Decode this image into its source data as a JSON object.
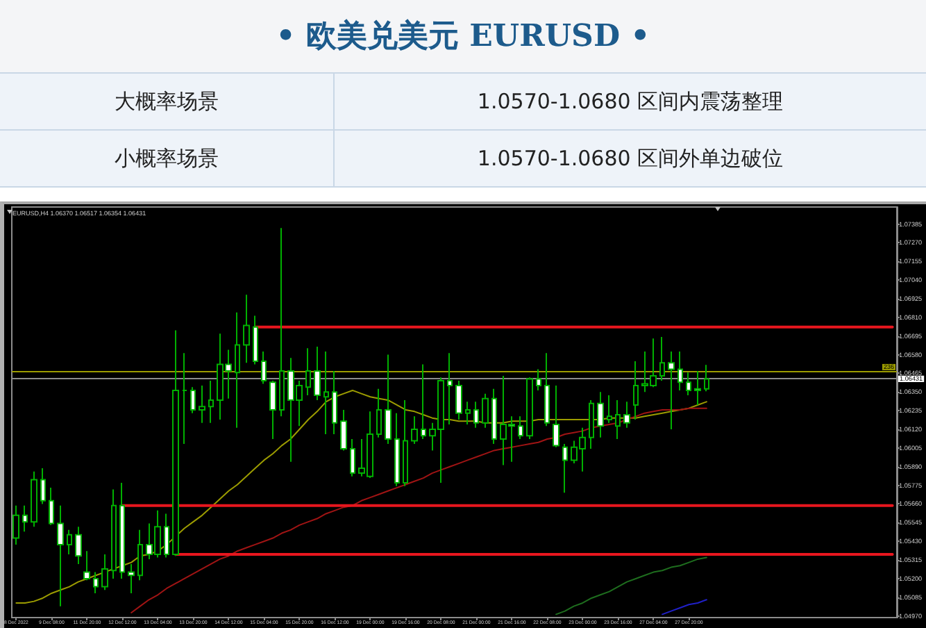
{
  "chart_data": {
    "type": "candlestick",
    "title": "• 欧美兑美元 EURUSD •",
    "subtitle": "EURUSD,H4 1.06370 1.06517 1.06354 1.06431",
    "annotations": [
      "大概率场景",
      "1.0570-1.0680 区间内震荡整理",
      "小概率场景",
      "1.0570-1.0680 区间外单边破位",
      {
        "text": "236",
        "y": 1.0648
      }
    ],
    "categories": [
      "8 Dec 2022",
      null,
      null,
      null,
      "9 Dec 08:00",
      null,
      null,
      null,
      "11 Dec 20:00",
      null,
      null,
      null,
      "12 Dec 12:00",
      null,
      null,
      null,
      "13 Dec 04:00",
      null,
      null,
      null,
      "13 Dec 20:00",
      null,
      null,
      null,
      "14 Dec 12:00",
      null,
      null,
      null,
      "15 Dec 04:00",
      null,
      null,
      null,
      "15 Dec 20:00",
      null,
      null,
      null,
      "16 Dec 12:00",
      null,
      null,
      null,
      "19 Dec 00:00",
      null,
      null,
      null,
      "19 Dec 16:00",
      null,
      null,
      null,
      "20 Dec 08:00",
      null,
      null,
      null,
      "21 Dec 00:00",
      null,
      null,
      null,
      "21 Dec 16:00",
      null,
      null,
      null,
      "22 Dec 08:00",
      null,
      null,
      null,
      "23 Dec 00:00",
      null,
      null,
      null,
      "23 Dec 16:00",
      null,
      null,
      null,
      "27 Dec 04:00",
      null,
      null,
      null,
      "27 Dec 20:00",
      null,
      null,
      null,
      null,
      null,
      null,
      null,
      null,
      null,
      null,
      null,
      null,
      null,
      null,
      null,
      null,
      null,
      null,
      null,
      null,
      null,
      null,
      null
    ],
    "ohlc": [
      [
        1.0545,
        1.0565,
        1.0541,
        1.0559
      ],
      [
        1.0559,
        1.0565,
        1.0549,
        1.0555
      ],
      [
        1.0555,
        1.0586,
        1.0552,
        1.0581
      ],
      [
        1.0581,
        1.0588,
        1.0566,
        1.0568
      ],
      [
        1.0568,
        1.0576,
        1.0553,
        1.0554
      ],
      [
        1.0554,
        1.0565,
        1.0503,
        1.0541
      ],
      [
        1.0541,
        1.055,
        1.0535,
        1.0547
      ],
      [
        1.0547,
        1.0552,
        1.0529,
        1.0534
      ],
      [
        1.0524,
        1.0537,
        1.0519,
        1.052
      ],
      [
        1.052,
        1.0524,
        1.0511,
        1.0515
      ],
      [
        1.0515,
        1.0535,
        1.0513,
        1.0526
      ],
      [
        1.0525,
        1.0575,
        1.052,
        1.0565
      ],
      [
        1.0565,
        1.0579,
        1.052,
        1.0524
      ],
      [
        1.0524,
        1.0529,
        1.0511,
        1.0522
      ],
      [
        1.0522,
        1.055,
        1.0519,
        1.0541
      ],
      [
        1.0541,
        1.0554,
        1.0532,
        1.0535
      ],
      [
        1.0535,
        1.0562,
        1.0533,
        1.0552
      ],
      [
        1.0552,
        1.056,
        1.0533,
        1.0535
      ],
      [
        1.0535,
        1.0673,
        1.0534,
        1.0636
      ],
      [
        1.0636,
        1.0659,
        1.0603,
        1.0636
      ],
      [
        1.0636,
        1.0638,
        1.0622,
        1.0624
      ],
      [
        1.0624,
        1.0639,
        1.0616,
        1.0626
      ],
      [
        1.0626,
        1.0642,
        1.0616,
        1.063
      ],
      [
        1.063,
        1.0671,
        1.0618,
        1.0652
      ],
      [
        1.0652,
        1.0661,
        1.0631,
        1.0648
      ],
      [
        1.0647,
        1.0684,
        1.0613,
        1.0664
      ],
      [
        1.0664,
        1.0695,
        1.0653,
        1.0676
      ],
      [
        1.0675,
        1.0682,
        1.0652,
        1.0654
      ],
      [
        1.0654,
        1.066,
        1.064,
        1.0642
      ],
      [
        1.0641,
        1.0642,
        1.0606,
        1.0624
      ],
      [
        1.0624,
        1.0736,
        1.062,
        1.0648
      ],
      [
        1.0648,
        1.0656,
        1.0592,
        1.063
      ],
      [
        1.063,
        1.0642,
        1.0614,
        1.0639
      ],
      [
        1.0638,
        1.0662,
        1.0633,
        1.0648
      ],
      [
        1.0648,
        1.0663,
        1.063,
        1.0633
      ],
      [
        1.0632,
        1.066,
        1.0609,
        1.0635
      ],
      [
        1.0635,
        1.0648,
        1.0609,
        1.0616
      ],
      [
        1.0617,
        1.0624,
        1.0599,
        1.06
      ],
      [
        1.06,
        1.0606,
        1.0583,
        1.0585
      ],
      [
        1.0585,
        1.0606,
        1.0583,
        1.0588
      ],
      [
        1.0583,
        1.0623,
        1.0582,
        1.0609
      ],
      [
        1.0609,
        1.0637,
        1.0607,
        1.0624
      ],
      [
        1.0624,
        1.0658,
        1.0603,
        1.0606
      ],
      [
        1.0606,
        1.0622,
        1.0577,
        1.0579
      ],
      [
        1.0579,
        1.063,
        1.0577,
        1.0605
      ],
      [
        1.0605,
        1.062,
        1.0603,
        1.0612
      ],
      [
        1.0612,
        1.0652,
        1.0606,
        1.0608
      ],
      [
        1.0608,
        1.0616,
        1.0599,
        1.0612
      ],
      [
        1.0612,
        1.0644,
        1.0579,
        1.0642
      ],
      [
        1.0642,
        1.0659,
        1.0615,
        1.0639
      ],
      [
        1.0639,
        1.0642,
        1.0618,
        1.0622
      ],
      [
        1.0622,
        1.0629,
        1.0615,
        1.0624
      ],
      [
        1.0624,
        1.0629,
        1.0613,
        1.0616
      ],
      [
        1.0616,
        1.0634,
        1.0613,
        1.0631
      ],
      [
        1.0631,
        1.0637,
        1.0603,
        1.0606
      ],
      [
        1.0606,
        1.0645,
        1.059,
        1.0615
      ],
      [
        1.0615,
        1.062,
        1.0592,
        1.0614
      ],
      [
        1.0614,
        1.062,
        1.0606,
        1.0608
      ],
      [
        1.0608,
        1.0644,
        1.0606,
        1.0643
      ],
      [
        1.0643,
        1.0649,
        1.0636,
        1.0639
      ],
      [
        1.0639,
        1.0659,
        1.0614,
        1.0616
      ],
      [
        1.0615,
        1.0639,
        1.0601,
        1.0602
      ],
      [
        1.0601,
        1.0603,
        1.0573,
        1.0593
      ],
      [
        1.0593,
        1.0605,
        1.0591,
        1.0601
      ],
      [
        1.06,
        1.0613,
        1.0586,
        1.0607
      ],
      [
        1.0607,
        1.063,
        1.06,
        1.0628
      ],
      [
        1.0628,
        1.0635,
        1.0607,
        1.0614
      ],
      [
        1.0618,
        1.0633,
        1.0616,
        1.062
      ],
      [
        1.0614,
        1.063,
        1.0606,
        1.0621
      ],
      [
        1.0621,
        1.0629,
        1.0613,
        1.0616
      ],
      [
        1.0627,
        1.0654,
        1.0618,
        1.0639
      ],
      [
        1.0639,
        1.066,
        1.0635,
        1.064
      ],
      [
        1.0639,
        1.0668,
        1.0638,
        1.0645
      ],
      [
        1.0645,
        1.0669,
        1.0642,
        1.0653
      ],
      [
        1.0653,
        1.066,
        1.0612,
        1.0649
      ],
      [
        1.0649,
        1.066,
        1.0636,
        1.0641
      ],
      [
        1.0641,
        1.0647,
        1.0633,
        1.0636
      ],
      [
        1.0637,
        1.0648,
        1.0627,
        1.0636
      ],
      [
        1.0637,
        1.06517,
        1.06354,
        1.06431
      ],
      null,
      null,
      null,
      null,
      null,
      null,
      null,
      null,
      null,
      null,
      null,
      null,
      null,
      null,
      null,
      null,
      null,
      null,
      null,
      null,
      null
    ],
    "color": "#00b000",
    "colors": [
      "#000000",
      "#ffffff",
      "#000000",
      "#ffffff",
      "#ffffff",
      "#ffffff",
      "#000000",
      "#ffffff",
      "#ffffff",
      "#ffffff",
      "#000000",
      "#000000",
      "#ffffff",
      "#ffffff",
      "#000000",
      "#ffffff",
      "#000000",
      "#ffffff",
      "#000000",
      "#00b000",
      "#ffffff",
      "#000000",
      "#000000",
      "#000000",
      "#ffffff",
      "#000000",
      "#000000",
      "#ffffff",
      "#ffffff",
      "#ffffff",
      "#000000",
      "#ffffff",
      "#000000",
      "#000000",
      "#ffffff",
      "#000000",
      "#ffffff",
      "#ffffff",
      "#ffffff",
      "#000000",
      "#000000",
      "#000000",
      "#ffffff",
      "#ffffff",
      "#000000",
      "#000000",
      "#ffffff",
      "#000000",
      "#000000",
      "#ffffff",
      "#ffffff",
      "#000000",
      "#ffffff",
      "#000000",
      "#ffffff",
      "#000000",
      "#ffffff",
      "#ffffff",
      "#000000",
      "#ffffff",
      "#ffffff",
      "#ffffff",
      "#ffffff",
      "#000000",
      "#000000",
      "#000000",
      "#ffffff",
      "#000000",
      "#000000",
      "#ffffff",
      "#000000",
      "#000000",
      "#000000",
      "#000000",
      "#ffffff",
      "#ffffff",
      "#ffffff",
      "#ffffff",
      "#000000",
      null,
      null,
      null,
      null,
      null,
      null,
      null,
      null,
      null,
      null,
      null,
      null,
      null,
      null,
      null,
      null,
      null,
      null,
      null,
      null,
      null
    ],
    "series": [
      {
        "type": "line",
        "color": "#9c9c00",
        "values": [
          1.0505,
          1.0505,
          1.0506,
          1.0508,
          1.0511,
          1.0513,
          1.0515,
          1.0518,
          1.052,
          1.0522,
          1.0524,
          1.0526,
          1.0528,
          1.053,
          1.0534,
          1.0535,
          1.0537,
          1.0541,
          1.0546,
          1.0551,
          1.0555,
          1.0559,
          1.0564,
          1.0569,
          1.0574,
          1.0578,
          1.0583,
          1.0588,
          1.0593,
          1.0597,
          1.0602,
          1.0606,
          1.0612,
          1.0618,
          1.0623,
          1.0629,
          1.0632,
          1.0634,
          1.0636,
          1.0634,
          1.0632,
          1.0631,
          1.063,
          1.0627,
          1.0624,
          1.0623,
          1.0621,
          1.0619,
          1.0618,
          1.0618,
          1.0617,
          1.0617,
          1.0617,
          1.0616,
          1.0616,
          1.0616,
          1.0617,
          1.0617,
          1.0617,
          1.0618,
          1.0618,
          1.0618,
          1.0618,
          1.0618,
          1.0618,
          1.0618,
          1.0618,
          1.0619,
          1.0619,
          1.0619,
          1.0619,
          1.062,
          1.0621,
          1.0622,
          1.0623,
          1.0624,
          1.0625,
          1.0627,
          1.0629,
          null,
          null,
          null,
          null,
          null,
          null,
          null,
          null,
          null,
          null,
          null,
          null,
          null,
          null,
          null,
          null,
          null,
          null,
          null,
          null,
          null
        ]
      },
      {
        "type": "line",
        "color": "#a01414",
        "values": [
          null,
          null,
          null,
          null,
          null,
          null,
          null,
          null,
          null,
          null,
          null,
          null,
          null,
          1.0499,
          1.0503,
          1.0507,
          1.051,
          1.0514,
          1.0517,
          1.052,
          1.0523,
          1.0526,
          1.0529,
          1.0532,
          1.0534,
          1.0537,
          1.0539,
          1.0541,
          1.0543,
          1.0545,
          1.0548,
          1.055,
          1.0553,
          1.0555,
          1.0557,
          1.056,
          1.0562,
          1.0564,
          1.0565,
          1.0568,
          1.057,
          1.0572,
          1.0574,
          1.0576,
          1.0578,
          1.058,
          1.0582,
          1.0585,
          1.0587,
          1.0589,
          1.0591,
          1.0593,
          1.0595,
          1.0597,
          1.0599,
          1.06,
          1.0601,
          1.0602,
          1.0603,
          1.0604,
          1.0606,
          1.0607,
          1.0609,
          1.061,
          1.0611,
          1.0613,
          1.0614,
          1.0615,
          1.0616,
          1.0618,
          1.062,
          1.0622,
          1.0623,
          1.0624,
          1.0624,
          1.0624,
          1.0625,
          1.0625,
          1.0625,
          null,
          null,
          null,
          null,
          null,
          null,
          null,
          null,
          null,
          null,
          null,
          null,
          null,
          null,
          null,
          null,
          null,
          null,
          null,
          null,
          null
        ]
      },
      {
        "type": "line",
        "color": "#1e6e1e",
        "values": [
          null,
          null,
          null,
          null,
          null,
          null,
          null,
          null,
          null,
          null,
          null,
          null,
          null,
          null,
          null,
          null,
          null,
          null,
          null,
          null,
          null,
          null,
          null,
          null,
          null,
          null,
          null,
          null,
          null,
          null,
          null,
          null,
          null,
          null,
          null,
          null,
          null,
          null,
          null,
          null,
          null,
          null,
          null,
          null,
          null,
          null,
          null,
          null,
          null,
          null,
          null,
          null,
          null,
          null,
          null,
          null,
          null,
          null,
          null,
          null,
          null,
          1.0498,
          1.05,
          1.0503,
          1.0505,
          1.0508,
          1.051,
          1.0512,
          1.0515,
          1.0518,
          1.052,
          1.0522,
          1.0524,
          1.0525,
          1.0527,
          1.0528,
          1.053,
          1.0532,
          1.0533,
          null,
          null,
          null,
          null,
          null,
          null,
          null,
          null,
          null,
          null,
          null,
          null,
          null,
          null,
          null,
          null,
          null,
          null,
          null,
          null,
          null
        ]
      },
      {
        "type": "line",
        "color": "#2020c8",
        "values": [
          null,
          null,
          null,
          null,
          null,
          null,
          null,
          null,
          null,
          null,
          null,
          null,
          null,
          null,
          null,
          null,
          null,
          null,
          null,
          null,
          null,
          null,
          null,
          null,
          null,
          null,
          null,
          null,
          null,
          null,
          null,
          null,
          null,
          null,
          null,
          null,
          null,
          null,
          null,
          null,
          null,
          null,
          null,
          null,
          null,
          null,
          null,
          null,
          null,
          null,
          null,
          null,
          null,
          null,
          null,
          null,
          null,
          null,
          null,
          null,
          null,
          null,
          null,
          null,
          null,
          null,
          null,
          null,
          null,
          null,
          null,
          null,
          null,
          1.0498,
          1.05,
          1.0502,
          1.0504,
          1.0505,
          1.0507,
          null,
          null,
          null,
          null,
          null,
          null,
          null,
          null,
          null,
          null,
          null,
          null,
          null,
          null,
          null,
          null,
          null,
          null,
          null,
          null,
          null
        ]
      },
      {
        "type": "line",
        "color": "#e8161e",
        "values": [
          null,
          null,
          null,
          null,
          null,
          null,
          null,
          null,
          null,
          null,
          null,
          null,
          null,
          null,
          null,
          null,
          null,
          null,
          null,
          null,
          null,
          null,
          null,
          null,
          null,
          null,
          null,
          1.0675,
          1.0675,
          1.0675,
          1.0675,
          1.0675,
          1.0675,
          1.0675,
          1.0675,
          1.0675,
          1.0675,
          1.0675,
          1.0675,
          1.0675,
          1.0675,
          1.0675,
          1.0675,
          1.0675,
          1.0675,
          1.0675,
          1.0675,
          1.0675,
          1.0675,
          1.0675,
          1.0675,
          1.0675,
          1.0675,
          1.0675,
          1.0675,
          1.0675,
          1.0675,
          1.0675,
          1.0675,
          1.0675,
          1.0675,
          1.0675,
          1.0675,
          1.0675,
          1.0675,
          1.0675,
          1.0675,
          1.0675,
          1.0675,
          1.0675,
          1.0675,
          1.0675,
          1.0675,
          1.0675,
          1.0675,
          1.0675,
          1.0675,
          1.0675,
          1.0675,
          1.0675,
          1.0675,
          1.0675,
          1.0675,
          1.0675,
          1.0675,
          1.0675,
          1.0675,
          1.0675,
          1.0675,
          1.0675,
          1.0675,
          1.0675,
          1.0675,
          1.0675,
          1.0675,
          1.0675,
          1.0675,
          1.0675,
          1.0675,
          1.0675
        ]
      },
      {
        "type": "line",
        "color": "#e8161e",
        "values": [
          null,
          null,
          null,
          null,
          null,
          null,
          null,
          null,
          null,
          null,
          null,
          null,
          1.0565,
          1.0565,
          1.0565,
          1.0565,
          1.0565,
          1.0565,
          1.0565,
          1.0565,
          1.0565,
          1.0565,
          1.0565,
          1.0565,
          1.0565,
          1.0565,
          1.0565,
          1.0565,
          1.0565,
          1.0565,
          1.0565,
          1.0565,
          1.0565,
          1.0565,
          1.0565,
          1.0565,
          1.0565,
          1.0565,
          1.0565,
          1.0565,
          1.0565,
          1.0565,
          1.0565,
          1.0565,
          1.0565,
          1.0565,
          1.0565,
          1.0565,
          1.0565,
          1.0565,
          1.0565,
          1.0565,
          1.0565,
          1.0565,
          1.0565,
          1.0565,
          1.0565,
          1.0565,
          1.0565,
          1.0565,
          1.0565,
          1.0565,
          1.0565,
          1.0565,
          1.0565,
          1.0565,
          1.0565,
          1.0565,
          1.0565,
          1.0565,
          1.0565,
          1.0565,
          1.0565,
          1.0565,
          1.0565,
          1.0565,
          1.0565,
          1.0565,
          1.0565,
          1.0565,
          1.0565,
          1.0565,
          1.0565,
          1.0565,
          1.0565,
          1.0565,
          1.0565,
          1.0565,
          1.0565,
          1.0565,
          1.0565,
          1.0565,
          1.0565,
          1.0565,
          1.0565,
          1.0565,
          1.0565,
          1.0565,
          1.0565,
          1.0565
        ]
      },
      {
        "type": "line",
        "color": "#e8161e",
        "values": [
          null,
          null,
          null,
          null,
          null,
          null,
          null,
          null,
          null,
          null,
          null,
          null,
          null,
          null,
          null,
          null,
          null,
          null,
          1.0535,
          1.0535,
          1.0535,
          1.0535,
          1.0535,
          1.0535,
          1.0535,
          1.0535,
          1.0535,
          1.0535,
          1.0535,
          1.0535,
          1.0535,
          1.0535,
          1.0535,
          1.0535,
          1.0535,
          1.0535,
          1.0535,
          1.0535,
          1.0535,
          1.0535,
          1.0535,
          1.0535,
          1.0535,
          1.0535,
          1.0535,
          1.0535,
          1.0535,
          1.0535,
          1.0535,
          1.0535,
          1.0535,
          1.0535,
          1.0535,
          1.0535,
          1.0535,
          1.0535,
          1.0535,
          1.0535,
          1.0535,
          1.0535,
          1.0535,
          1.0535,
          1.0535,
          1.0535,
          1.0535,
          1.0535,
          1.0535,
          1.0535,
          1.0535,
          1.0535,
          1.0535,
          1.0535,
          1.0535,
          1.0535,
          1.0535,
          1.0535,
          1.0535,
          1.0535,
          1.0535,
          1.0535,
          1.0535,
          1.0535,
          1.0535,
          1.0535,
          1.0535,
          1.0535,
          1.0535,
          1.0535,
          1.0535,
          1.0535,
          1.0535,
          1.0535,
          1.0535,
          1.0535,
          1.0535,
          1.0535,
          1.0535,
          1.0535,
          1.0535,
          1.0535
        ]
      }
    ],
    "ylim": [
      1.0496,
      1.0749
    ],
    "yticks": [
      {
        "value": 1.0497,
        "label": "1.04970"
      },
      {
        "value": 1.05085,
        "label": "1.05085"
      },
      {
        "value": 1.052,
        "label": "1.05200"
      },
      {
        "value": 1.05315,
        "label": "1.05315"
      },
      {
        "value": 1.0543,
        "label": "1.05430"
      },
      {
        "value": 1.05545,
        "label": "1.05545"
      },
      {
        "value": 1.0566,
        "label": "1.05660"
      },
      {
        "value": 1.05775,
        "label": "1.05775"
      },
      {
        "value": 1.0589,
        "label": "1.05890"
      },
      {
        "value": 1.06005,
        "label": "1.06005"
      },
      {
        "value": 1.0612,
        "label": "1.06120"
      },
      {
        "value": 1.06235,
        "label": "1.06235"
      },
      {
        "value": 1.0635,
        "label": "1.06350"
      },
      {
        "value": 1.06465,
        "label": "1.06465"
      },
      {
        "value": 1.0658,
        "label": "1.06580"
      },
      {
        "value": 1.06695,
        "label": "1.06695"
      },
      {
        "value": 1.0681,
        "label": "1.06810"
      },
      {
        "value": 1.06925,
        "label": "1.06925"
      },
      {
        "value": 1.0704,
        "label": "1.07040"
      },
      {
        "value": 1.07155,
        "label": "1.07155"
      },
      {
        "value": 1.0727,
        "label": "1.07270"
      },
      {
        "value": 1.07385,
        "label": "1.07385"
      }
    ],
    "ref_lines": [
      {
        "axis": "y",
        "value": 1.0648,
        "color": "#9c9c00"
      },
      {
        "axis": "y",
        "value": 1.06431,
        "label": "1.06431",
        "color": "#8c8c8c"
      }
    ],
    "marker": "none"
  }
}
